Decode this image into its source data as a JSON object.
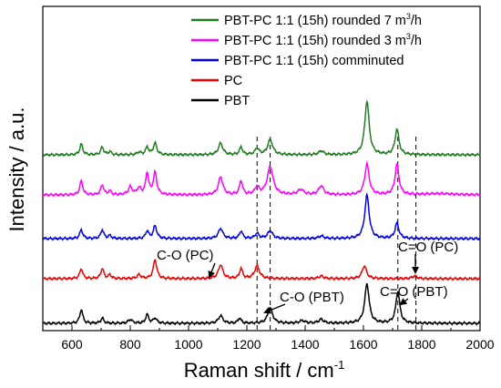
{
  "chart_data": {
    "type": "line",
    "xlabel": "Raman shift / cm",
    "xlabel_sup": "-1",
    "ylabel": "Intensity / a.u.",
    "xlim": [
      500,
      2000
    ],
    "xticks": [
      "600",
      "800",
      "1000",
      "1200",
      "1400",
      "1600",
      "1800",
      "2000"
    ],
    "legend_position": "top-right",
    "series": [
      {
        "name": "PBT-PC 1:1 (15h) rounded 7 m",
        "name_sup": "3",
        "name_suffix": "/h",
        "color": "#1e7d1e",
        "offset": 4,
        "peaks": [
          [
            632,
            0.42,
            6
          ],
          [
            704,
            0.3,
            6
          ],
          [
            730,
            0.12,
            6
          ],
          [
            830,
            0.1,
            8
          ],
          [
            858,
            0.3,
            6
          ],
          [
            885,
            0.45,
            7
          ],
          [
            1110,
            0.45,
            9
          ],
          [
            1180,
            0.3,
            6
          ],
          [
            1235,
            0.25,
            8
          ],
          [
            1280,
            0.6,
            10
          ],
          [
            1455,
            0.15,
            10
          ],
          [
            1612,
            2.1,
            9
          ],
          [
            1715,
            1.0,
            8
          ]
        ]
      },
      {
        "name": "PBT-PC 1:1 (15h) rounded 3 m",
        "name_sup": "3",
        "name_suffix": "/h",
        "color": "#ff00ff",
        "offset": 3,
        "peaks": [
          [
            632,
            0.55,
            6
          ],
          [
            704,
            0.4,
            6
          ],
          [
            730,
            0.15,
            6
          ],
          [
            800,
            0.3,
            8
          ],
          [
            830,
            0.25,
            8
          ],
          [
            858,
            0.85,
            6
          ],
          [
            885,
            0.85,
            7
          ],
          [
            1110,
            0.7,
            9
          ],
          [
            1180,
            0.55,
            6
          ],
          [
            1235,
            0.3,
            8
          ],
          [
            1280,
            1.1,
            12
          ],
          [
            1385,
            0.2,
            12
          ],
          [
            1455,
            0.35,
            10
          ],
          [
            1612,
            1.2,
            9
          ],
          [
            1715,
            1.2,
            8
          ],
          [
            1860,
            0.05,
            60
          ]
        ]
      },
      {
        "name": "PBT-PC 1:1 (15h) comminuted",
        "name_sup": "",
        "name_suffix": "",
        "color": "#0000ee",
        "offset": 2,
        "peaks": [
          [
            632,
            0.35,
            6
          ],
          [
            704,
            0.35,
            6
          ],
          [
            730,
            0.12,
            6
          ],
          [
            858,
            0.3,
            6
          ],
          [
            885,
            0.5,
            7
          ],
          [
            1110,
            0.4,
            9
          ],
          [
            1180,
            0.3,
            6
          ],
          [
            1235,
            0.2,
            8
          ],
          [
            1280,
            0.3,
            10
          ],
          [
            1455,
            0.1,
            10
          ],
          [
            1612,
            1.7,
            9
          ],
          [
            1715,
            0.6,
            8
          ]
        ]
      },
      {
        "name": "PC",
        "name_sup": "",
        "name_suffix": "",
        "color": "#ee0000",
        "offset": 1,
        "peaks": [
          [
            632,
            0.4,
            6
          ],
          [
            704,
            0.4,
            6
          ],
          [
            730,
            0.15,
            6
          ],
          [
            830,
            0.15,
            8
          ],
          [
            885,
            0.75,
            7
          ],
          [
            1110,
            0.55,
            9
          ],
          [
            1180,
            0.4,
            6
          ],
          [
            1235,
            0.5,
            10
          ],
          [
            1455,
            0.1,
            10
          ],
          [
            1603,
            0.5,
            9
          ],
          [
            1775,
            0.1,
            10
          ]
        ]
      },
      {
        "name": "PBT",
        "name_sup": "",
        "name_suffix": "",
        "color": "#000000",
        "offset": 0,
        "peaks": [
          [
            632,
            0.55,
            6
          ],
          [
            704,
            0.2,
            6
          ],
          [
            800,
            0.15,
            8
          ],
          [
            858,
            0.35,
            6
          ],
          [
            885,
            0.2,
            7
          ],
          [
            1110,
            0.3,
            9
          ],
          [
            1175,
            0.2,
            6
          ],
          [
            1280,
            0.6,
            10
          ],
          [
            1390,
            0.1,
            12
          ],
          [
            1455,
            0.15,
            10
          ],
          [
            1612,
            1.55,
            9
          ],
          [
            1718,
            1.25,
            8
          ]
        ]
      }
    ],
    "reference_lines": [
      1235,
      1280,
      1718,
      1780
    ],
    "annotations": [
      {
        "text": "C-O (PC)",
        "x": 1235
      },
      {
        "text": "C-O (PBT)",
        "x": 1280
      },
      {
        "text": "C=O (PC)",
        "x": 1780
      },
      {
        "text": "C=O (PBT)",
        "x": 1718
      }
    ]
  }
}
